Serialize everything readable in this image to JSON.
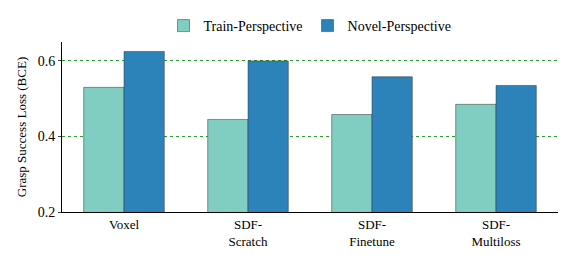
{
  "chart_data": {
    "type": "bar",
    "y_label": "Grasp Success Loss (BCE)",
    "categories": [
      "Voxel",
      "SDF-\nScratch",
      "SDF-\nFinetune",
      "SDF-\nMultiloss"
    ],
    "series": [
      {
        "name": "Train-Perspective",
        "color": "#80cdc1",
        "values": [
          0.53,
          0.445,
          0.458,
          0.485
        ]
      },
      {
        "name": "Novel-Perspective",
        "color": "#2b83ba",
        "values": [
          0.625,
          0.6,
          0.558,
          0.535
        ]
      }
    ],
    "ylim": [
      0.2,
      0.65
    ],
    "yticks": [
      0.2,
      0.4,
      0.6
    ],
    "grid": true,
    "legend": "top"
  }
}
